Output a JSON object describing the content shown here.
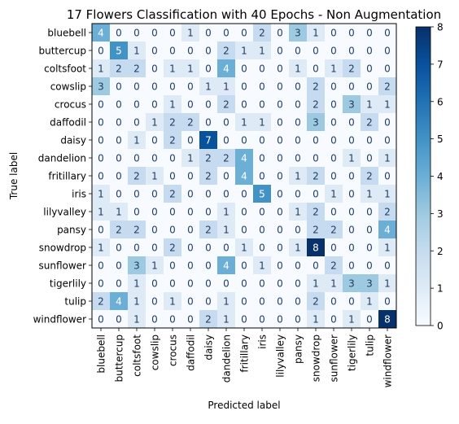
{
  "chart_data": {
    "type": "heatmap",
    "title": "17 Flowers Classification with 40 Epochs - Non Augmentation",
    "xlabel": "Predicted label",
    "ylabel": "True label",
    "labels": [
      "bluebell",
      "buttercup",
      "coltsfoot",
      "cowslip",
      "crocus",
      "daffodil",
      "daisy",
      "dandelion",
      "fritillary",
      "iris",
      "lilyvalley",
      "pansy",
      "snowdrop",
      "sunflower",
      "tigerlily",
      "tulip",
      "windflower"
    ],
    "matrix": [
      [
        4,
        0,
        0,
        0,
        0,
        1,
        0,
        0,
        0,
        2,
        0,
        3,
        1,
        0,
        0,
        0,
        0
      ],
      [
        0,
        5,
        1,
        0,
        0,
        0,
        0,
        2,
        1,
        1,
        0,
        0,
        0,
        0,
        0,
        0,
        0
      ],
      [
        1,
        2,
        2,
        0,
        1,
        1,
        0,
        4,
        0,
        0,
        0,
        1,
        0,
        1,
        2,
        0,
        0
      ],
      [
        3,
        0,
        0,
        0,
        0,
        0,
        1,
        1,
        0,
        0,
        0,
        0,
        2,
        0,
        0,
        0,
        2
      ],
      [
        0,
        0,
        0,
        0,
        1,
        0,
        0,
        2,
        0,
        0,
        0,
        0,
        2,
        0,
        3,
        1,
        1
      ],
      [
        0,
        0,
        0,
        1,
        2,
        2,
        0,
        0,
        1,
        1,
        0,
        0,
        3,
        0,
        0,
        2,
        0
      ],
      [
        0,
        0,
        1,
        0,
        2,
        0,
        7,
        0,
        0,
        0,
        0,
        0,
        0,
        0,
        0,
        0,
        0
      ],
      [
        0,
        0,
        0,
        0,
        0,
        1,
        2,
        2,
        4,
        0,
        0,
        0,
        0,
        0,
        1,
        0,
        1
      ],
      [
        0,
        0,
        2,
        1,
        0,
        0,
        2,
        0,
        4,
        0,
        0,
        1,
        2,
        0,
        0,
        2,
        0
      ],
      [
        1,
        0,
        0,
        0,
        2,
        0,
        0,
        0,
        0,
        5,
        0,
        0,
        0,
        1,
        0,
        1,
        1
      ],
      [
        1,
        1,
        0,
        0,
        0,
        0,
        0,
        1,
        0,
        0,
        0,
        1,
        2,
        0,
        0,
        0,
        2
      ],
      [
        0,
        2,
        2,
        0,
        0,
        0,
        2,
        1,
        0,
        0,
        0,
        0,
        2,
        2,
        0,
        0,
        4
      ],
      [
        1,
        0,
        0,
        0,
        2,
        0,
        0,
        0,
        1,
        0,
        0,
        1,
        8,
        0,
        0,
        0,
        1
      ],
      [
        0,
        0,
        3,
        1,
        0,
        0,
        0,
        4,
        0,
        1,
        0,
        0,
        0,
        2,
        0,
        0,
        0
      ],
      [
        0,
        0,
        1,
        0,
        0,
        0,
        0,
        0,
        0,
        0,
        0,
        0,
        1,
        1,
        3,
        3,
        1
      ],
      [
        2,
        4,
        1,
        0,
        1,
        0,
        0,
        1,
        0,
        0,
        0,
        0,
        2,
        0,
        0,
        1,
        0
      ],
      [
        0,
        0,
        1,
        0,
        0,
        0,
        2,
        1,
        0,
        0,
        0,
        0,
        1,
        0,
        1,
        0,
        8
      ]
    ],
    "colorbar": {
      "min": 0,
      "max": 8,
      "ticks": [
        0,
        1,
        2,
        3,
        4,
        5,
        6,
        7,
        8
      ],
      "colormap": "Blues"
    }
  }
}
